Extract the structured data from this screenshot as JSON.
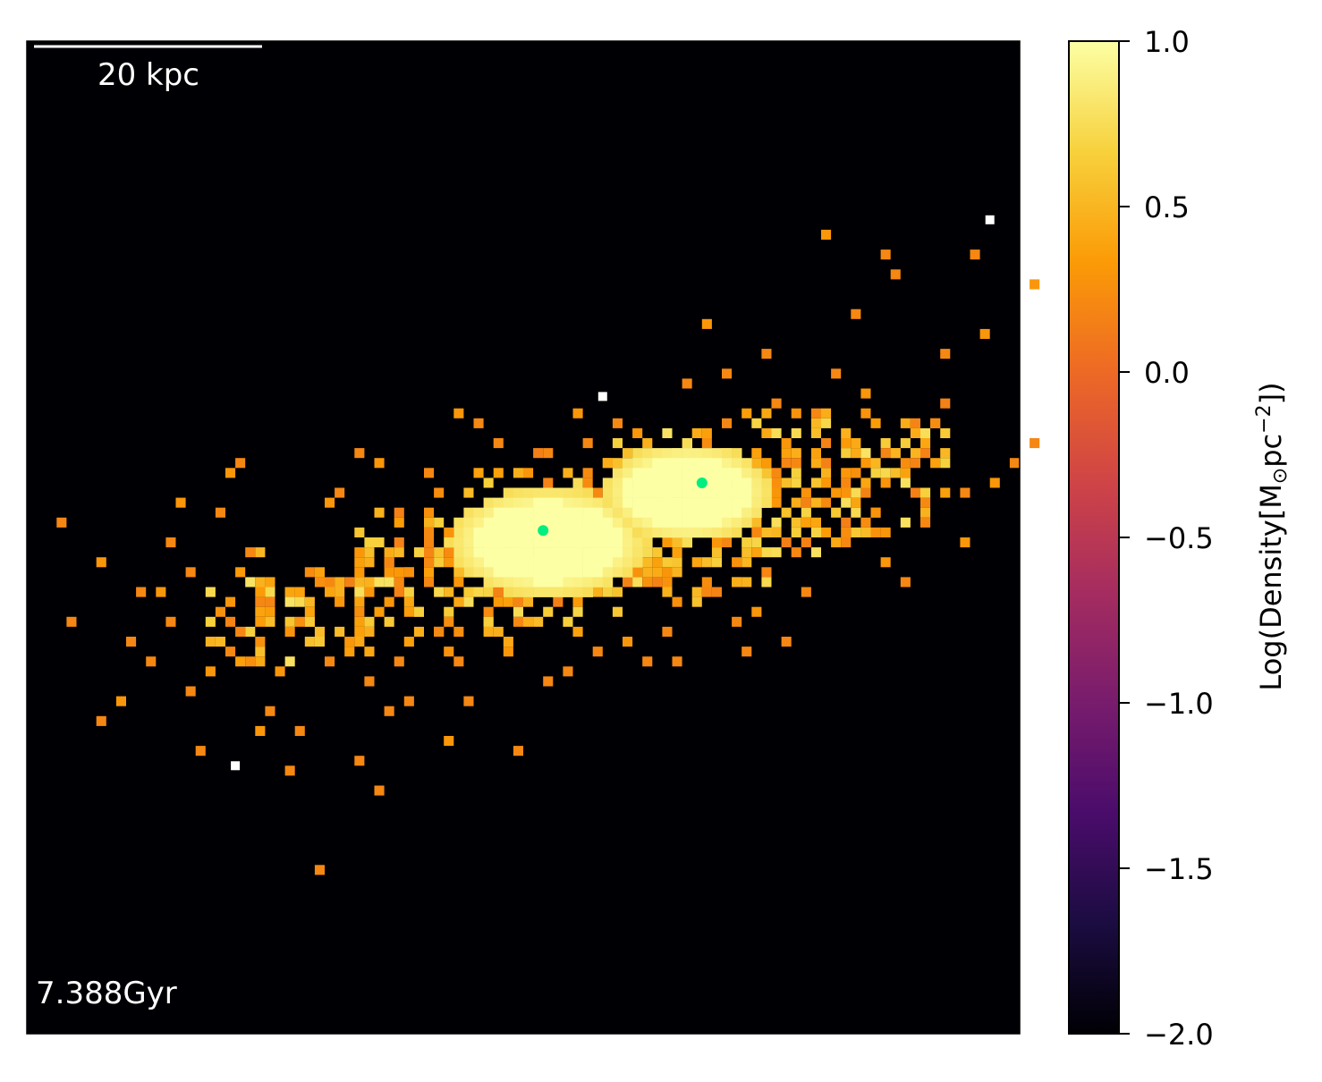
{
  "chart_data": {
    "type": "heatmap",
    "scale_bar_label": "20 kpc",
    "time_label": "7.388Gyr",
    "colorbar": {
      "label_main": "Log(Density[M",
      "label_sub": "⊙",
      "label_mid": "pc",
      "label_sup": "−2",
      "label_end": "])",
      "ticks": [
        "1.0",
        "0.5",
        "0.0",
        "−0.5",
        "−1.0",
        "−1.5",
        "−2.0"
      ],
      "tick_values": [
        1.0,
        0.5,
        0.0,
        -0.5,
        -1.0,
        -1.5,
        -2.0
      ],
      "range": [
        -2.0,
        1.0
      ],
      "colormap": [
        "#000004",
        "#1b0c41",
        "#4a0c6b",
        "#781c6d",
        "#a52c60",
        "#cf4446",
        "#ed6925",
        "#fb9b06",
        "#f7d13d",
        "#fcffa4"
      ]
    },
    "background_color": "#000004",
    "grid": "off",
    "cores": [
      {
        "name": "core-1",
        "x": 52,
        "y": 50,
        "rx": 10,
        "ry": 5.5,
        "value": 1.0
      },
      {
        "name": "core-2",
        "x": 66,
        "y": 45,
        "rx": 8.5,
        "ry": 5,
        "value": 1.0
      }
    ],
    "centers": [
      {
        "x": 52,
        "y": 49.3,
        "color": "#00ee80"
      },
      {
        "x": 68,
        "y": 44.5,
        "color": "#00ee80"
      }
    ],
    "white_points": [
      {
        "x": 58,
        "y": 35.8
      },
      {
        "x": 97,
        "y": 18
      },
      {
        "x": 21,
        "y": 73
      }
    ],
    "scattered_cells": [
      {
        "x": 3,
        "y": 48,
        "v": 0.2
      },
      {
        "x": 7,
        "y": 52,
        "v": 0.3
      },
      {
        "x": 4,
        "y": 58,
        "v": 0.2
      },
      {
        "x": 7,
        "y": 68,
        "v": 0.2
      },
      {
        "x": 9,
        "y": 66,
        "v": 0.3
      },
      {
        "x": 10,
        "y": 60,
        "v": 0.2
      },
      {
        "x": 11,
        "y": 55,
        "v": 0.2
      },
      {
        "x": 13,
        "y": 55,
        "v": 0.3
      },
      {
        "x": 14,
        "y": 58,
        "v": 0.2
      },
      {
        "x": 14,
        "y": 50,
        "v": 0.2
      },
      {
        "x": 15,
        "y": 46,
        "v": 0.3
      },
      {
        "x": 16,
        "y": 53,
        "v": 0.2
      },
      {
        "x": 16,
        "y": 65,
        "v": 0.2
      },
      {
        "x": 17,
        "y": 71,
        "v": 0.2
      },
      {
        "x": 18,
        "y": 63,
        "v": 0.3
      },
      {
        "x": 19,
        "y": 47,
        "v": 0.2
      },
      {
        "x": 20,
        "y": 43,
        "v": 0.3
      },
      {
        "x": 21,
        "y": 42,
        "v": 0.2
      },
      {
        "x": 22,
        "y": 51,
        "v": 0.2
      },
      {
        "x": 23,
        "y": 69,
        "v": 0.3
      },
      {
        "x": 24,
        "y": 67,
        "v": 0.2
      },
      {
        "x": 27,
        "y": 69,
        "v": 0.2
      },
      {
        "x": 29,
        "y": 83,
        "v": 0.2
      },
      {
        "x": 30,
        "y": 46,
        "v": 0.3
      },
      {
        "x": 31,
        "y": 45,
        "v": 0.2
      },
      {
        "x": 33,
        "y": 41,
        "v": 0.2
      },
      {
        "x": 35,
        "y": 42,
        "v": 0.3
      },
      {
        "x": 36,
        "y": 67,
        "v": 0.2
      },
      {
        "x": 35,
        "y": 75,
        "v": 0.2
      },
      {
        "x": 40,
        "y": 43,
        "v": 0.2
      },
      {
        "x": 43,
        "y": 37,
        "v": 0.3
      },
      {
        "x": 45,
        "y": 38,
        "v": 0.2
      },
      {
        "x": 47,
        "y": 40,
        "v": 0.2
      },
      {
        "x": 48,
        "y": 61,
        "v": 0.3
      },
      {
        "x": 49,
        "y": 71,
        "v": 0.2
      },
      {
        "x": 55,
        "y": 37,
        "v": 0.3
      },
      {
        "x": 59,
        "y": 38,
        "v": 0.2
      },
      {
        "x": 61,
        "y": 39,
        "v": 0.3
      },
      {
        "x": 62,
        "y": 62,
        "v": 0.2
      },
      {
        "x": 66,
        "y": 34,
        "v": 0.2
      },
      {
        "x": 68,
        "y": 28,
        "v": 0.3
      },
      {
        "x": 70,
        "y": 33,
        "v": 0.2
      },
      {
        "x": 71,
        "y": 58,
        "v": 0.2
      },
      {
        "x": 72,
        "y": 61,
        "v": 0.2
      },
      {
        "x": 75,
        "y": 36,
        "v": 0.2
      },
      {
        "x": 76,
        "y": 40,
        "v": 0.3
      },
      {
        "x": 78,
        "y": 55,
        "v": 0.2
      },
      {
        "x": 79,
        "y": 37,
        "v": 0.2
      },
      {
        "x": 80,
        "y": 19,
        "v": 0.3
      },
      {
        "x": 81,
        "y": 33,
        "v": 0.2
      },
      {
        "x": 82,
        "y": 50,
        "v": 0.2
      },
      {
        "x": 84,
        "y": 35,
        "v": 0.3
      },
      {
        "x": 86,
        "y": 21,
        "v": 0.2
      },
      {
        "x": 87,
        "y": 23,
        "v": 0.2
      },
      {
        "x": 88,
        "y": 54,
        "v": 0.2
      },
      {
        "x": 89,
        "y": 39,
        "v": 0.3
      },
      {
        "x": 91,
        "y": 38,
        "v": 0.2
      },
      {
        "x": 92,
        "y": 31,
        "v": 0.2
      },
      {
        "x": 94,
        "y": 50,
        "v": 0.3
      },
      {
        "x": 95,
        "y": 21,
        "v": 0.2
      },
      {
        "x": 96,
        "y": 29,
        "v": 0.3
      },
      {
        "x": 99,
        "y": 42,
        "v": 0.2
      },
      {
        "x": 101,
        "y": 24,
        "v": 0.3
      },
      {
        "x": 101,
        "y": 40,
        "v": 0.2
      },
      {
        "x": 97,
        "y": 44,
        "v": 0.3
      },
      {
        "x": 94,
        "y": 45,
        "v": 0.2
      },
      {
        "x": 90,
        "y": 48,
        "v": 0.2
      },
      {
        "x": 86,
        "y": 52,
        "v": 0.3
      },
      {
        "x": 83,
        "y": 27,
        "v": 0.2
      },
      {
        "x": 74,
        "y": 31,
        "v": 0.2
      },
      {
        "x": 76,
        "y": 60,
        "v": 0.2
      },
      {
        "x": 73,
        "y": 57,
        "v": 0.3
      },
      {
        "x": 65,
        "y": 62,
        "v": 0.2
      },
      {
        "x": 64,
        "y": 59,
        "v": 0.2
      },
      {
        "x": 60,
        "y": 60,
        "v": 0.3
      },
      {
        "x": 57,
        "y": 61,
        "v": 0.2
      },
      {
        "x": 54,
        "y": 63,
        "v": 0.2
      },
      {
        "x": 52,
        "y": 64,
        "v": 0.2
      },
      {
        "x": 44,
        "y": 66,
        "v": 0.2
      },
      {
        "x": 42,
        "y": 70,
        "v": 0.3
      },
      {
        "x": 38,
        "y": 66,
        "v": 0.2
      },
      {
        "x": 33,
        "y": 72,
        "v": 0.2
      },
      {
        "x": 26,
        "y": 73,
        "v": 0.2
      },
      {
        "x": 25,
        "y": 63,
        "v": 0.3
      },
      {
        "x": 21,
        "y": 59,
        "v": 0.2
      },
      {
        "x": 20,
        "y": 61,
        "v": 0.2
      },
      {
        "x": 12,
        "y": 62,
        "v": 0.2
      },
      {
        "x": 23,
        "y": 56,
        "v": 0.2
      },
      {
        "x": 26,
        "y": 55,
        "v": 0.3
      },
      {
        "x": 28,
        "y": 58,
        "v": 0.2
      },
      {
        "x": 30,
        "y": 62,
        "v": 0.2
      },
      {
        "x": 32,
        "y": 60,
        "v": 0.3
      },
      {
        "x": 34,
        "y": 64,
        "v": 0.2
      },
      {
        "x": 37,
        "y": 62,
        "v": 0.2
      },
      {
        "x": 39,
        "y": 57,
        "v": 0.3
      },
      {
        "x": 41,
        "y": 59,
        "v": 0.2
      },
      {
        "x": 43,
        "y": 62,
        "v": 0.2
      },
      {
        "x": 46,
        "y": 58,
        "v": 0.3
      },
      {
        "x": 47,
        "y": 54,
        "v": 0.2
      },
      {
        "x": 49,
        "y": 58,
        "v": 0.2
      },
      {
        "x": 36,
        "y": 52,
        "v": 0.3
      },
      {
        "x": 38,
        "y": 53,
        "v": 0.2
      },
      {
        "x": 40,
        "y": 50,
        "v": 0.2
      },
      {
        "x": 42,
        "y": 52,
        "v": 0.3
      },
      {
        "x": 44,
        "y": 48,
        "v": 0.2
      },
      {
        "x": 79,
        "y": 42,
        "v": 0.2
      },
      {
        "x": 81,
        "y": 45,
        "v": 0.3
      },
      {
        "x": 83,
        "y": 43,
        "v": 0.2
      },
      {
        "x": 85,
        "y": 47,
        "v": 0.2
      },
      {
        "x": 87,
        "y": 41,
        "v": 0.3
      },
      {
        "x": 77,
        "y": 51,
        "v": 0.2
      },
      {
        "x": 74,
        "y": 53,
        "v": 0.2
      },
      {
        "x": 71,
        "y": 54,
        "v": 0.3
      },
      {
        "x": 68,
        "y": 55,
        "v": 0.2
      },
      {
        "x": 56,
        "y": 40,
        "v": 0.2
      },
      {
        "x": 58,
        "y": 42,
        "v": 0.3
      },
      {
        "x": 52,
        "y": 41,
        "v": 0.2
      },
      {
        "x": 50,
        "y": 43,
        "v": 0.3
      },
      {
        "x": 48,
        "y": 45,
        "v": 0.2
      }
    ]
  }
}
